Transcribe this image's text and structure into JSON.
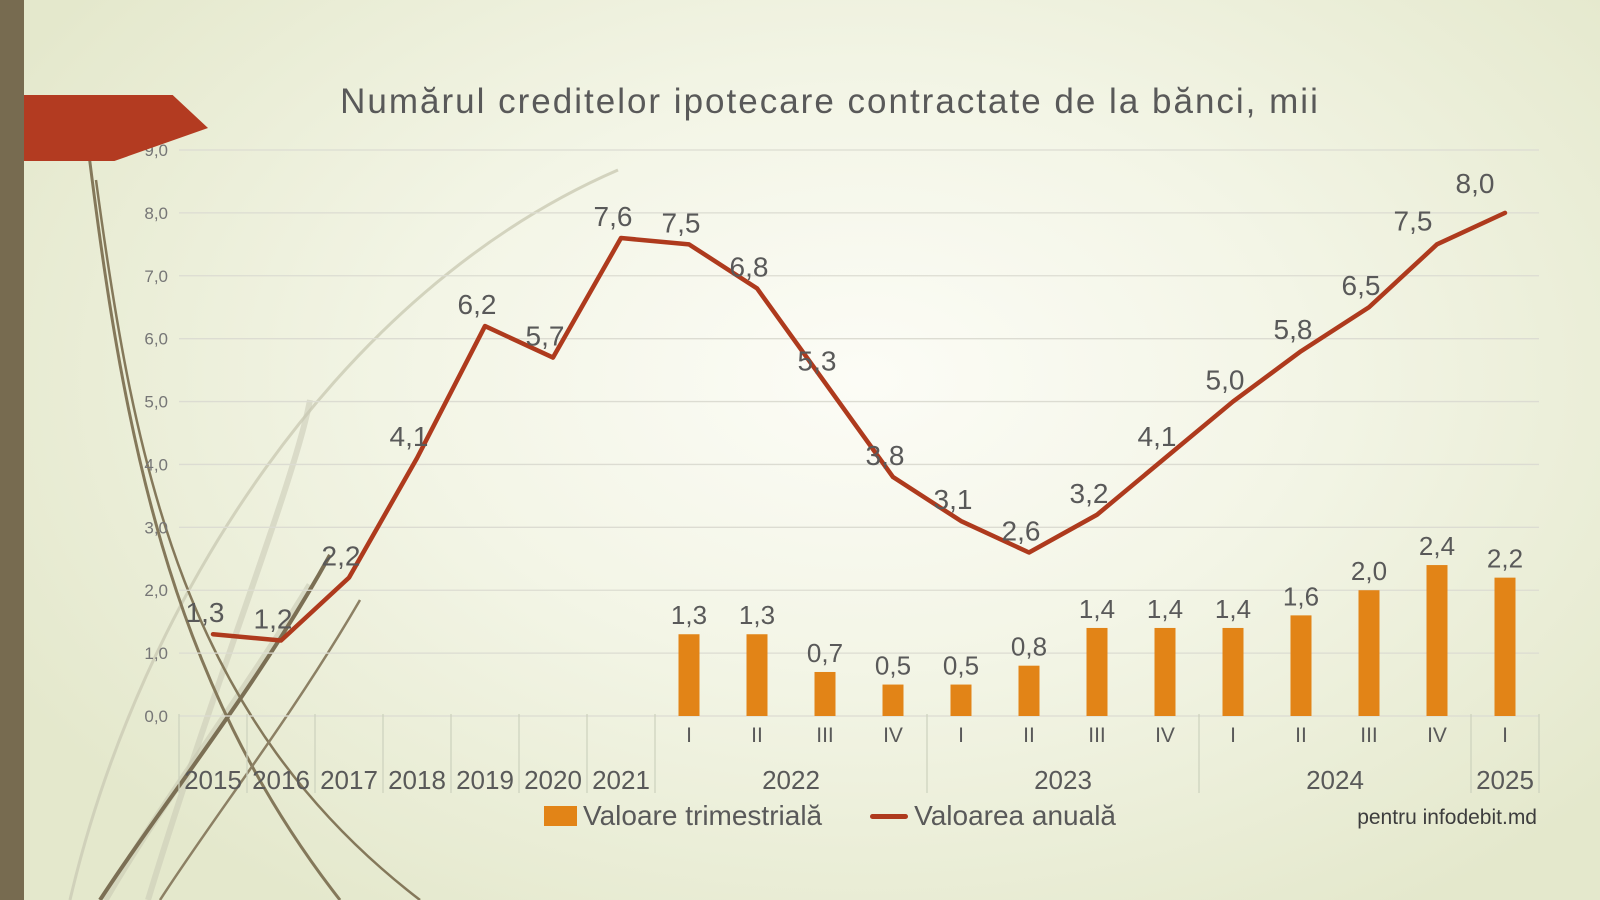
{
  "title": "Numărul creditelor ipotecare contractate de la bănci, mii",
  "watermark": "pentru infodebit.md",
  "legend": {
    "bar_label": "Valoare trimestrială",
    "line_label": "Valoarea anuală"
  },
  "colors": {
    "bar": "#e28417",
    "line": "#ae3a1d",
    "label_text": "#595959",
    "axis_text": "#767676",
    "grid": "#dcdcd2",
    "separator": "#ccd1bd",
    "accent_arrow": "#b33b21",
    "side_bar": "#776b50"
  },
  "chart_data": {
    "type": "combo-bar-line",
    "title": "Numărul creditelor ipotecare contractate de la bănci, mii",
    "y_axis": {
      "min": 0,
      "max": 9,
      "step": 1,
      "grid": true,
      "tick_labels": [
        "0,0",
        "1,0",
        "2,0",
        "3,0",
        "4,0",
        "5,0",
        "6,0",
        "7,0",
        "8,0",
        "9,0"
      ]
    },
    "x_axis": {
      "year_columns": [
        "2015",
        "2016",
        "2017",
        "2018",
        "2019",
        "2020",
        "2021"
      ],
      "quarter_groups": [
        {
          "year": "2022",
          "quarters": [
            "I",
            "II",
            "III",
            "IV"
          ]
        },
        {
          "year": "2023",
          "quarters": [
            "I",
            "II",
            "III",
            "IV"
          ]
        },
        {
          "year": "2024",
          "quarters": [
            "I",
            "II",
            "III",
            "IV"
          ]
        },
        {
          "year": "2025",
          "quarters": [
            "I"
          ]
        }
      ]
    },
    "series": [
      {
        "name": "Valoarea anuală",
        "type": "line",
        "color": "#ae3a1d",
        "values": [
          1.3,
          1.2,
          2.2,
          4.1,
          6.2,
          5.7,
          7.6,
          7.5,
          6.8,
          5.3,
          3.8,
          3.1,
          2.6,
          3.2,
          4.1,
          5.0,
          5.8,
          6.5,
          7.5,
          8.0
        ],
        "labels": [
          "1,3",
          "1,2",
          "2,2",
          "4,1",
          "6,2",
          "5,7",
          "7,6",
          "7,5",
          "6,8",
          "5,3",
          "3,8",
          "3,1",
          "2,6",
          "3,2",
          "4,1",
          "5,0",
          "5,8",
          "6,5",
          "7,5",
          "8,0"
        ]
      },
      {
        "name": "Valoare trimestrială",
        "type": "bar",
        "color": "#e28417",
        "start_column": 7,
        "values": [
          1.3,
          1.3,
          0.7,
          0.5,
          0.5,
          0.8,
          1.4,
          1.4,
          1.4,
          1.6,
          2.0,
          2.4,
          2.2
        ],
        "labels": [
          "1,3",
          "1,3",
          "0,7",
          "0,5",
          "0,5",
          "0,8",
          "1,4",
          "1,4",
          "1,4",
          "1,6",
          "2,0",
          "2,4",
          "2,2"
        ]
      }
    ]
  }
}
